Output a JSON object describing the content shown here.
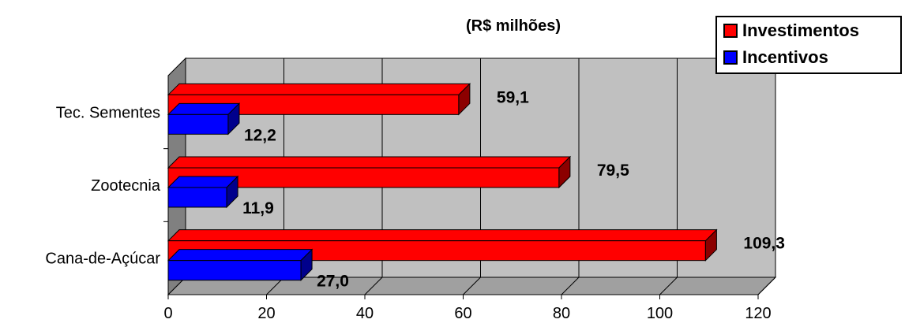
{
  "chart_data": {
    "type": "bar",
    "orientation": "horizontal",
    "unit_label": "(R$  milhões)",
    "categories": [
      "Cana-de-Açúcar",
      "Zootecnia",
      "Tec. Sementes"
    ],
    "series": [
      {
        "name": "Investimentos",
        "color": "#ff0000",
        "values": [
          109.3,
          79.5,
          59.1
        ],
        "labels": [
          "109,3",
          "79,5",
          "59,1"
        ]
      },
      {
        "name": "Incentivos",
        "color": "#0000ff",
        "values": [
          27.0,
          11.9,
          12.2
        ],
        "labels": [
          "27,0",
          "11,9",
          "12,2"
        ]
      }
    ],
    "x_ticks": [
      "0",
      "20",
      "40",
      "60",
      "80",
      "100",
      "120"
    ],
    "xlim": [
      0,
      120
    ],
    "grid": true,
    "legend_position": "top-right",
    "three_d": true
  }
}
